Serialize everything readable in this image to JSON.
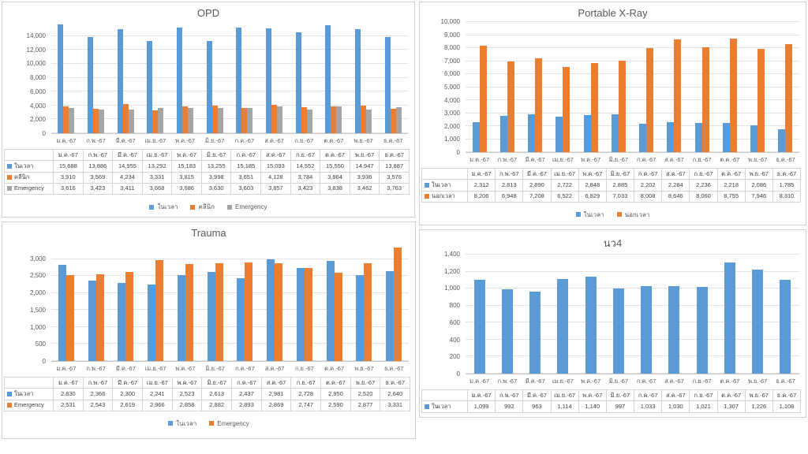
{
  "colors": {
    "series_blue": "#5B9BD5",
    "series_orange": "#ED7D31",
    "series_gray": "#A5A5A5",
    "title_text": "#595959",
    "axis_text": "#595959",
    "gridline": "#e3e3e3"
  },
  "chart_data": [
    {
      "type": "bar",
      "title": "OPD",
      "xlabel": "",
      "ylabel": "",
      "grid": true,
      "legend_position": "bottom",
      "show_legend": true,
      "show_data_table": true,
      "categories": [
        "ม.ค.-67",
        "ก.พ.-67",
        "มี.ค.-67",
        "เม.ย.-67",
        "พ.ค.-67",
        "มิ.ย.-67",
        "ก.ค.-67",
        "ส.ค.-67",
        "ก.ย.-67",
        "ต.ค.-67",
        "พ.ย.-67",
        "ธ.ค.-67"
      ],
      "series": [
        {
          "name": "ในเวลา",
          "color": "#5B9BD5",
          "values": [
            15688,
            13886,
            14955,
            13292,
            15183,
            13255,
            15185,
            15093,
            14552,
            15550,
            14947,
            13887
          ]
        },
        {
          "name": "คลีนิก",
          "color": "#ED7D31",
          "values": [
            3910,
            3569,
            4234,
            3331,
            3815,
            3998,
            3651,
            4128,
            3784,
            3864,
            3936,
            3576
          ]
        },
        {
          "name": "Emergency",
          "color": "#A5A5A5",
          "values": [
            3616,
            3423,
            3411,
            3668,
            3686,
            3630,
            3603,
            3857,
            3423,
            3838,
            3462,
            3763
          ]
        }
      ],
      "y_axis": {
        "min": 0,
        "max_label": 14000,
        "plot_max": 16000,
        "step": 2000
      }
    },
    {
      "type": "bar",
      "title": "Portable X-Ray",
      "xlabel": "",
      "ylabel": "",
      "grid": true,
      "legend_position": "bottom",
      "show_legend": true,
      "show_data_table": true,
      "categories": [
        "ม.ค.-67",
        "ก.พ.-67",
        "มี.ค.-67",
        "เม.ย.-67",
        "พ.ค.-67",
        "มิ.ย.-67",
        "ก.ค.-67",
        "ส.ค.-67",
        "ก.ย.-67",
        "ต.ค.-67",
        "พ.ย.-67",
        "ธ.ค.-67"
      ],
      "series": [
        {
          "name": "ในเวลา",
          "color": "#5B9BD5",
          "values": [
            2312,
            2813,
            2890,
            2722,
            2848,
            2885,
            2202,
            2284,
            2236,
            2218,
            2086,
            1785
          ]
        },
        {
          "name": "นอกเวลา",
          "color": "#ED7D31",
          "values": [
            8206,
            6948,
            7208,
            6522,
            6829,
            7033,
            8008,
            8646,
            8060,
            8755,
            7946,
            8310
          ]
        }
      ],
      "y_axis": {
        "min": 0,
        "max_label": 10000,
        "plot_max": 10000,
        "step": 1000
      }
    },
    {
      "type": "bar",
      "title": "Trauma",
      "xlabel": "",
      "ylabel": "",
      "grid": true,
      "legend_position": "bottom",
      "show_legend": true,
      "show_data_table": true,
      "categories": [
        "ม.ค.-67",
        "ก.พ.-67",
        "มี.ค.-67",
        "เม.ย.-67",
        "พ.ค.-67",
        "มิ.ย.-67",
        "ก.ค.-67",
        "ส.ค.-67",
        "ก.ย.-67",
        "ต.ค.-67",
        "พ.ย.-67",
        "ธ.ค.-67"
      ],
      "series": [
        {
          "name": "ในเวลา",
          "color": "#5B9BD5",
          "values": [
            2830,
            2366,
            2300,
            2241,
            2523,
            2613,
            2437,
            2981,
            2728,
            2950,
            2520,
            2640
          ]
        },
        {
          "name": "Emergency",
          "color": "#ED7D31",
          "values": [
            2531,
            2543,
            2619,
            2966,
            2858,
            2882,
            2893,
            2869,
            2747,
            2590,
            2877,
            3331
          ]
        }
      ],
      "y_axis": {
        "min": 0,
        "max_label": 3000,
        "plot_max": 3500,
        "step": 500
      }
    },
    {
      "type": "bar",
      "title": "นว4",
      "xlabel": "",
      "ylabel": "",
      "grid": true,
      "legend_position": "none",
      "show_legend": false,
      "show_data_table": true,
      "categories": [
        "ม.ค.-67",
        "ก.พ.-67",
        "มี.ค.-67",
        "เม.ย.-67",
        "พ.ค.-67",
        "มิ.ย.-67",
        "ก.ค.-67",
        "ส.ค.-67",
        "ก.ย.-67",
        "ต.ค.-67",
        "พ.ย.-67",
        "ธ.ค.-67"
      ],
      "series": [
        {
          "name": "ในเวลา",
          "color": "#5B9BD5",
          "values": [
            1099,
            992,
            963,
            1114,
            1140,
            997,
            1033,
            1030,
            1021,
            1307,
            1226,
            1108
          ]
        }
      ],
      "y_axis": {
        "min": 0,
        "max_label": 1400,
        "plot_max": 1400,
        "step": 200
      }
    }
  ]
}
